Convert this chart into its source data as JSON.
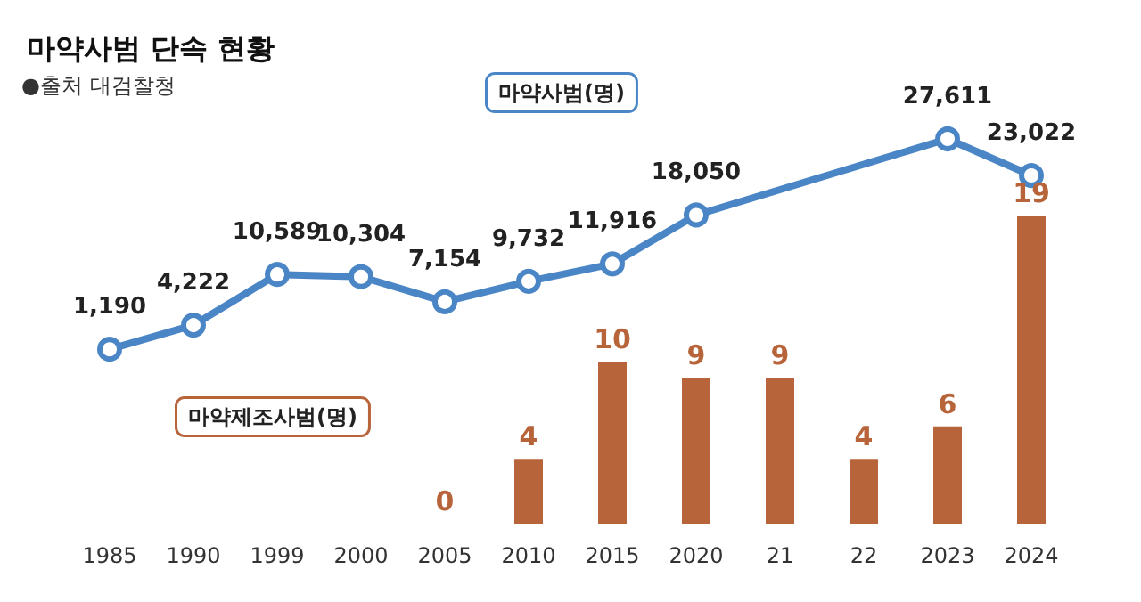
{
  "chart_data": [
    {
      "type": "line",
      "title": "마약사범 단속 현황",
      "annotations": [
        "●출처 대검찰청"
      ],
      "categories": [
        "1985",
        "1990",
        "1999",
        "2000",
        "2005",
        "2010",
        "2015",
        "2020",
        "21",
        "22",
        "2023",
        "2024"
      ],
      "legend": false,
      "grid": false,
      "marker": "circle",
      "tick_labels": "x",
      "series": [
        {
          "name": "마약사범(명)",
          "color": "#4a86c6",
          "values": [
            1190,
            4222,
            10589,
            10304,
            7154,
            9732,
            11916,
            18050,
            null,
            null,
            27611,
            23022
          ],
          "value_labels": [
            "1,190",
            "4,222",
            "10,589",
            "10,304",
            "7,154",
            "9,732",
            "11,916",
            "18,050",
            null,
            null,
            "27,611",
            "23,022"
          ]
        }
      ]
    },
    {
      "type": "bar",
      "categories": [
        "1985",
        "1990",
        "1999",
        "2000",
        "2005",
        "2010",
        "2015",
        "2020",
        "21",
        "22",
        "2023",
        "2024"
      ],
      "data_labels": true,
      "legend": false,
      "grid": false,
      "tick_labels": false,
      "series": [
        {
          "name": "마약제조사범(명)",
          "color": "#b8643a",
          "values": [
            null,
            null,
            null,
            null,
            0,
            4,
            10,
            9,
            9,
            4,
            6,
            19
          ]
        }
      ]
    }
  ]
}
